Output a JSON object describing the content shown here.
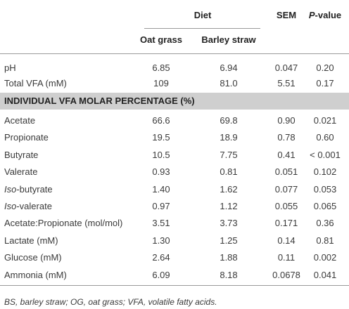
{
  "header": {
    "diet": "Diet",
    "columns": [
      "Oat grass",
      "Barley straw"
    ],
    "sem": "SEM",
    "pvalue": [
      "P",
      "-value"
    ]
  },
  "table": {
    "top_rows": [
      [
        "pH",
        "6.85",
        "6.94",
        "0.047",
        "0.20"
      ],
      [
        "Total VFA (mM)",
        "109",
        "81.0",
        "5.51",
        "0.17"
      ]
    ],
    "section": "INDIVIDUAL VFA MOLAR PERCENTAGE (%)",
    "rows": [
      [
        "Acetate",
        "66.6",
        "69.8",
        "0.90",
        "0.021"
      ],
      [
        "Propionate",
        "19.5",
        "18.9",
        "0.78",
        "0.60"
      ],
      [
        "Butyrate",
        "10.5",
        "7.75",
        "0.41",
        "< 0.001"
      ],
      [
        "Valerate",
        "0.93",
        "0.81",
        "0.051",
        "0.102"
      ],
      [
        [
          "Iso",
          "-butyrate"
        ],
        "1.40",
        "1.62",
        "0.077",
        "0.053"
      ],
      [
        [
          "Iso",
          "-valerate"
        ],
        "0.97",
        "1.12",
        "0.055",
        "0.065"
      ],
      [
        "Acetate:Propionate (mol/mol)",
        "3.51",
        "3.73",
        "0.171",
        "0.36"
      ],
      [
        "Lactate (mM)",
        "1.30",
        "1.25",
        "0.14",
        "0.81"
      ],
      [
        "Glucose (mM)",
        "2.64",
        "1.88",
        "0.11",
        "0.002"
      ],
      [
        "Ammonia (mM)",
        "6.09",
        "8.18",
        "0.0678",
        "0.041"
      ]
    ]
  },
  "footnote": "BS, barley straw; OG, oat grass; VFA, volatile fatty acids."
}
